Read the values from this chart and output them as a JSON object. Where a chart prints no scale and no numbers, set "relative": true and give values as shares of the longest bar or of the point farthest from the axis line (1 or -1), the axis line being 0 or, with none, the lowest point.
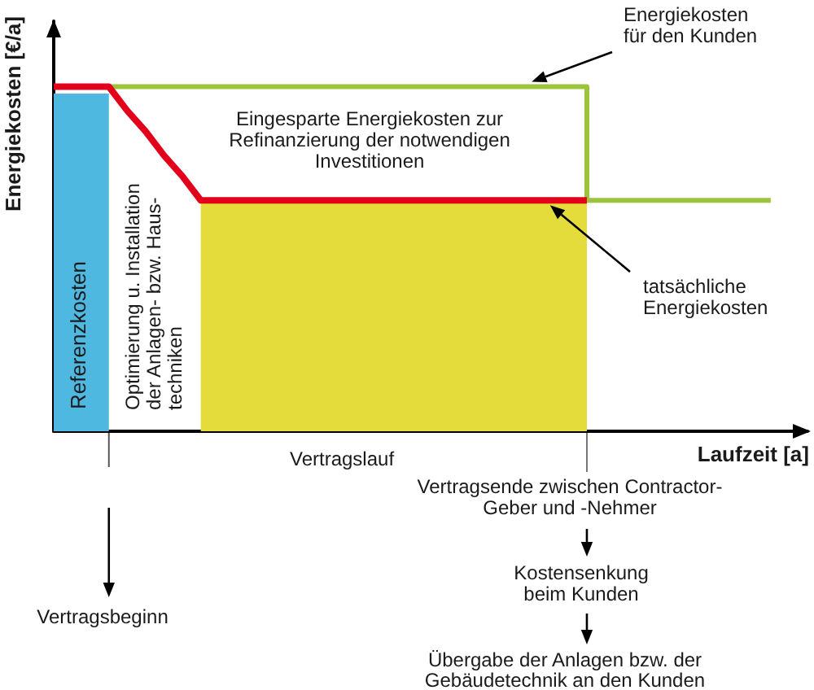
{
  "chart_data": {
    "type": "line",
    "xlabel": "Laufzeit [a]",
    "ylabel": "Energiekosten [€/a]",
    "relative": true,
    "categories": [
      null,
      null,
      null,
      null,
      null,
      null,
      null,
      null,
      null,
      null,
      null,
      null,
      null,
      null,
      null,
      null,
      null,
      null,
      null,
      null,
      null,
      null,
      null,
      null,
      null,
      null,
      null,
      null,
      null,
      null,
      null,
      null,
      null,
      null,
      null,
      null,
      null,
      null,
      null,
      null,
      null,
      null
    ],
    "series": [
      {
        "type": "area",
        "color": "#4fb8e0",
        "values": [
          0.98,
          0.98,
          0.98,
          0.98,
          null,
          null,
          null,
          null,
          null,
          null,
          null,
          null,
          null,
          null,
          null,
          null,
          null,
          null,
          null,
          null,
          null,
          null,
          null,
          null,
          null,
          null,
          null,
          null,
          null,
          null,
          null,
          null,
          null,
          null,
          null,
          null,
          null,
          null,
          null,
          null,
          null,
          null
        ]
      },
      {
        "type": "area",
        "color": "#e4dc3a",
        "values": [
          null,
          null,
          null,
          null,
          null,
          null,
          null,
          null,
          0.67,
          0.67,
          0.67,
          0.67,
          0.67,
          0.67,
          0.67,
          0.67,
          0.67,
          0.67,
          0.67,
          0.67,
          0.67,
          0.67,
          0.67,
          0.67,
          0.67,
          0.67,
          0.67,
          0.67,
          0.67,
          0.67,
          null,
          null,
          null,
          null,
          null,
          null,
          null,
          null,
          null,
          null,
          null,
          null
        ]
      },
      {
        "type": "step",
        "color": "#9bc43c",
        "values": [
          null,
          null,
          null,
          1,
          1,
          1,
          1,
          1,
          1,
          1,
          1,
          1,
          1,
          1,
          1,
          1,
          1,
          1,
          1,
          1,
          1,
          1,
          1,
          1,
          1,
          1,
          1,
          1,
          1,
          1,
          0.67,
          0.67,
          0.67,
          0.67,
          0.67,
          0.67,
          0.67,
          0.67,
          0.67,
          0.67,
          null,
          null
        ]
      },
      {
        "color": "#e3001b",
        "values": [
          1,
          1,
          1,
          1,
          0.93,
          0.87,
          0.8,
          0.74,
          0.67,
          0.67,
          0.67,
          0.67,
          0.67,
          0.67,
          0.67,
          0.67,
          0.67,
          0.67,
          0.67,
          0.67,
          0.67,
          0.67,
          0.67,
          0.67,
          0.67,
          0.67,
          0.67,
          0.67,
          0.67,
          0.67,
          null,
          null,
          null,
          null,
          null,
          null,
          null,
          null,
          null,
          null,
          null,
          null
        ]
      }
    ],
    "annotations": [
      "Energiekosten\nfür den Kunden",
      "Eingesparte Energiekosten zur\nRefinanzierung der notwendigen\nInvestitionen",
      "tatsächliche\nEnergiekosten",
      "Referenzkosten",
      "Optimierung u. Installation\nder Anlagen- bzw. Haus-\ntechniken",
      "Vertragslauf",
      "Vertragsbeginn",
      "Vertragsende zwischen Contractor-\nGeber und -Nehmer",
      "Kostensenkung\nbeim Kunden",
      "Übergabe der Anlagen bzw. der\nGebäudetechnik an den Kunden"
    ]
  }
}
